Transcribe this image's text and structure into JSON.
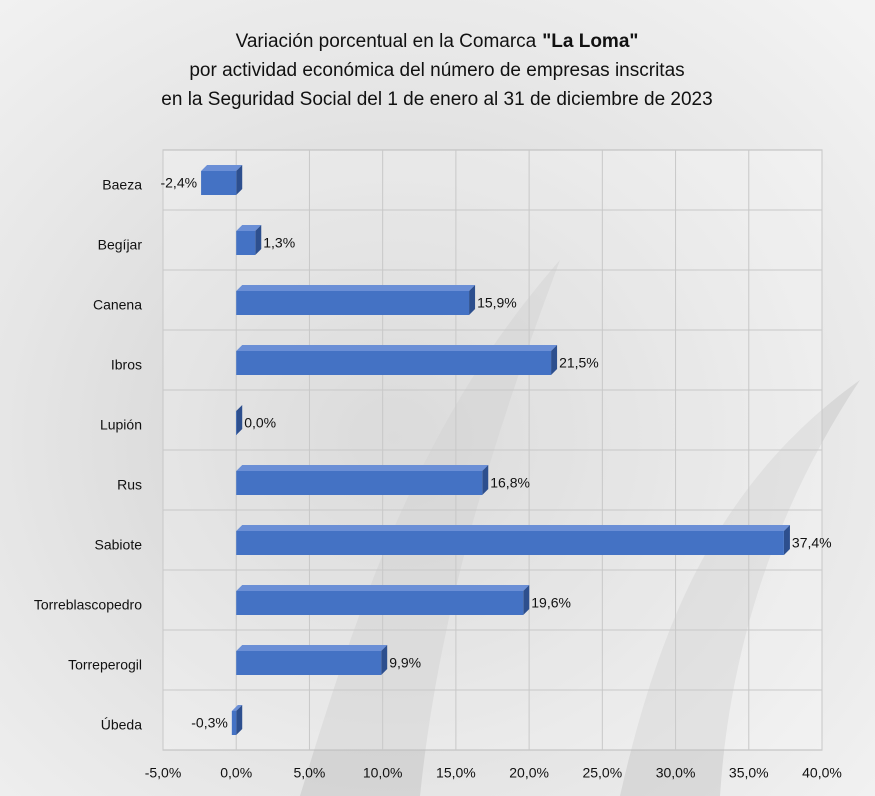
{
  "chart_data": {
    "type": "bar",
    "orientation": "horizontal",
    "title": {
      "line1": "Variación porcentual en la Comarca",
      "line1_bold": "\"La Loma\"",
      "line2": "por actividad económica del número de empresas inscritas",
      "line3": "en la Seguridad Social del 1 de enero al 31 de diciembre de 2023"
    },
    "categories": [
      "Baeza",
      "Begíjar",
      "Canena",
      "Ibros",
      "Lupión",
      "Rus",
      "Sabiote",
      "Torreblascopedro",
      "Torreperogil",
      "Úbeda"
    ],
    "values": [
      -2.4,
      1.3,
      15.9,
      21.5,
      0.0,
      16.8,
      37.4,
      19.6,
      9.9,
      -0.3
    ],
    "value_labels": [
      "-2,4%",
      "1,3%",
      "15,9%",
      "21,5%",
      "0,0%",
      "16,8%",
      "37,4%",
      "19,6%",
      "9,9%",
      "-0,3%"
    ],
    "color": "#4472c4",
    "xlim": [
      -5,
      40
    ],
    "xticks": [
      {
        "value": -5,
        "label": "-5,0%"
      },
      {
        "value": 0,
        "label": "0,0%"
      },
      {
        "value": 5,
        "label": "5,0%"
      },
      {
        "value": 10,
        "label": "10,0%"
      },
      {
        "value": 15,
        "label": "15,0%"
      },
      {
        "value": 20,
        "label": "20,0%"
      },
      {
        "value": 25,
        "label": "25,0%"
      },
      {
        "value": 30,
        "label": "30,0%"
      },
      {
        "value": 35,
        "label": "35,0%"
      },
      {
        "value": 40,
        "label": "40,0%"
      }
    ],
    "grid": true
  }
}
